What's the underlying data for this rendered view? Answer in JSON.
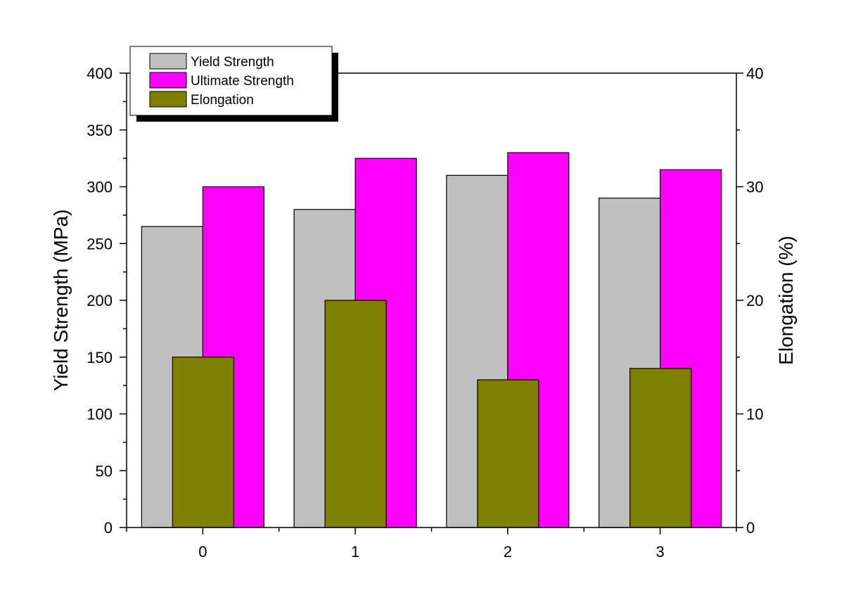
{
  "chart_data": {
    "type": "bar",
    "categories": [
      "0",
      "1",
      "2",
      "3"
    ],
    "series": [
      {
        "name": "Yield Strength",
        "axis": "left",
        "color": "#C0C0C0",
        "values": [
          265,
          280,
          310,
          290
        ]
      },
      {
        "name": "Ultimate Strength",
        "axis": "left",
        "color": "#FF00FF",
        "values": [
          300,
          325,
          330,
          315
        ]
      },
      {
        "name": "Elongation",
        "axis": "right",
        "color": "#808000",
        "values": [
          15,
          20,
          13,
          14
        ]
      }
    ],
    "ylabel": "Yield Strength (MPa)",
    "y2label": "Elongation (%)",
    "ylim": [
      0,
      400
    ],
    "y2lim": [
      0,
      40
    ],
    "yticks": [
      "0",
      "50",
      "100",
      "150",
      "200",
      "250",
      "300",
      "350",
      "400"
    ],
    "y2ticks": [
      "0",
      "10",
      "20",
      "30",
      "40"
    ],
    "grid": false,
    "legend_position": "top-left"
  }
}
